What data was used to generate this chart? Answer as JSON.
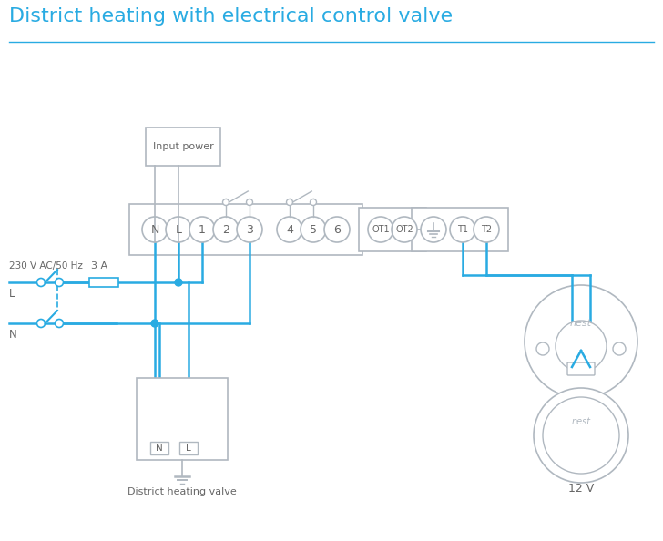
{
  "title": "District heating with electrical control valve",
  "title_color": "#29abe2",
  "title_fontsize": 16,
  "line_color": "#29abe2",
  "gray_color": "#aaaaaa",
  "dark_gray": "#666666",
  "light_gray": "#b0b8c0",
  "bg_color": "#ffffff",
  "terminal_labels_main": [
    "N",
    "L",
    "1",
    "2",
    "3",
    "4",
    "5",
    "6"
  ],
  "terminal_labels_ot": [
    "OT1",
    "OT2"
  ],
  "terminal_labels_t": [
    "T1",
    "T2"
  ],
  "label_230V": "230 V AC/50 Hz",
  "label_L": "L",
  "label_N": "N",
  "label_3A": "3 A",
  "label_district": "District heating valve",
  "label_12V": "12 V",
  "label_nest": "nest"
}
